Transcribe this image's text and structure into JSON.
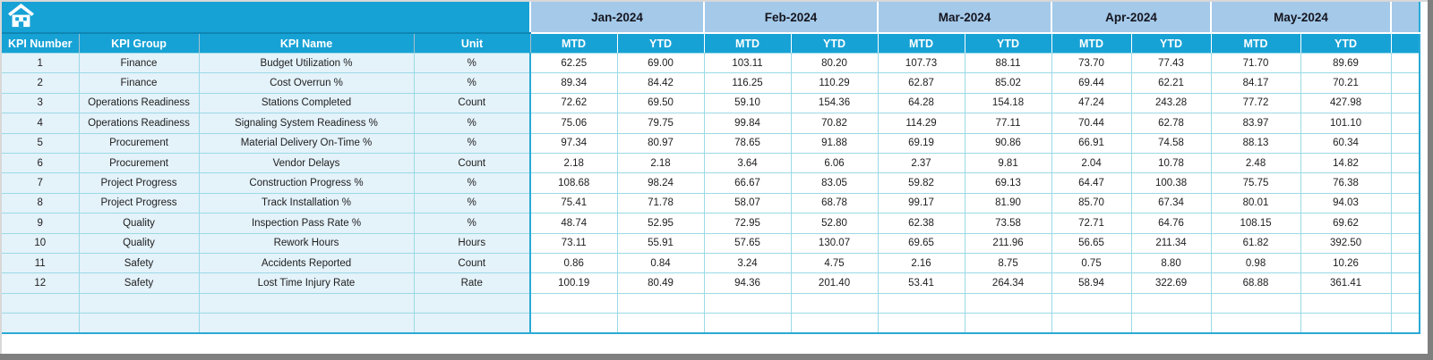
{
  "header": {
    "left_columns": [
      "KPI Number",
      "KPI Group",
      "KPI Name",
      "Unit"
    ],
    "months": [
      "Jan-2024",
      "Feb-2024",
      "Mar-2024",
      "Apr-2024",
      "May-2024"
    ],
    "sub_columns": [
      "MTD",
      "YTD"
    ],
    "home_icon": "home-icon"
  },
  "table": {
    "rows": [
      {
        "number": "1",
        "group": "Finance",
        "name": "Budget Utilization %",
        "unit": "%",
        "values": [
          "62.25",
          "69.00",
          "103.11",
          "80.20",
          "107.73",
          "88.11",
          "73.70",
          "77.43",
          "71.70",
          "89.69"
        ]
      },
      {
        "number": "2",
        "group": "Finance",
        "name": "Cost Overrun %",
        "unit": "%",
        "values": [
          "89.34",
          "84.42",
          "116.25",
          "110.29",
          "62.87",
          "85.02",
          "69.44",
          "62.21",
          "84.17",
          "70.21"
        ]
      },
      {
        "number": "3",
        "group": "Operations Readiness",
        "name": "Stations Completed",
        "unit": "Count",
        "values": [
          "72.62",
          "69.50",
          "59.10",
          "154.36",
          "64.28",
          "154.18",
          "47.24",
          "243.28",
          "77.72",
          "427.98"
        ]
      },
      {
        "number": "4",
        "group": "Operations Readiness",
        "name": "Signaling System Readiness %",
        "unit": "%",
        "values": [
          "75.06",
          "79.75",
          "99.84",
          "70.82",
          "114.29",
          "77.11",
          "70.44",
          "62.78",
          "83.97",
          "101.10"
        ]
      },
      {
        "number": "5",
        "group": "Procurement",
        "name": "Material Delivery On-Time %",
        "unit": "%",
        "values": [
          "97.34",
          "80.97",
          "78.65",
          "91.88",
          "69.19",
          "90.86",
          "66.91",
          "74.58",
          "88.13",
          "60.34"
        ]
      },
      {
        "number": "6",
        "group": "Procurement",
        "name": "Vendor Delays",
        "unit": "Count",
        "values": [
          "2.18",
          "2.18",
          "3.64",
          "6.06",
          "2.37",
          "9.81",
          "2.04",
          "10.78",
          "2.48",
          "14.82"
        ]
      },
      {
        "number": "7",
        "group": "Project Progress",
        "name": "Construction Progress %",
        "unit": "%",
        "values": [
          "108.68",
          "98.24",
          "66.67",
          "83.05",
          "59.82",
          "69.13",
          "64.47",
          "100.38",
          "75.75",
          "76.38"
        ]
      },
      {
        "number": "8",
        "group": "Project Progress",
        "name": "Track Installation %",
        "unit": "%",
        "values": [
          "75.41",
          "71.78",
          "58.07",
          "68.78",
          "99.17",
          "81.90",
          "85.70",
          "67.34",
          "80.01",
          "94.03"
        ]
      },
      {
        "number": "9",
        "group": "Quality",
        "name": "Inspection Pass Rate %",
        "unit": "%",
        "values": [
          "48.74",
          "52.95",
          "72.95",
          "52.80",
          "62.38",
          "73.58",
          "72.71",
          "64.76",
          "108.15",
          "69.62"
        ]
      },
      {
        "number": "10",
        "group": "Quality",
        "name": "Rework Hours",
        "unit": "Hours",
        "values": [
          "73.11",
          "55.91",
          "57.65",
          "130.07",
          "69.65",
          "211.96",
          "56.65",
          "211.34",
          "61.82",
          "392.50"
        ]
      },
      {
        "number": "11",
        "group": "Safety",
        "name": "Accidents Reported",
        "unit": "Count",
        "values": [
          "0.86",
          "0.84",
          "3.24",
          "4.75",
          "2.16",
          "8.75",
          "0.75",
          "8.80",
          "0.98",
          "10.26"
        ]
      },
      {
        "number": "12",
        "group": "Safety",
        "name": "Lost Time Injury Rate",
        "unit": "Rate",
        "values": [
          "100.19",
          "80.49",
          "94.36",
          "201.40",
          "53.41",
          "264.34",
          "58.94",
          "322.69",
          "68.88",
          "361.41"
        ]
      }
    ],
    "empty_rows": 2
  },
  "colors": {
    "accent_cyan": "#17A2D6",
    "month_band_blue": "#A4C9E9",
    "left_cell_blue": "#E4F2FA",
    "gridline_teal": "#9ADAE6",
    "strong_border_cyan": "#2BAAD6",
    "frame_gray": "#7F7F7F"
  }
}
